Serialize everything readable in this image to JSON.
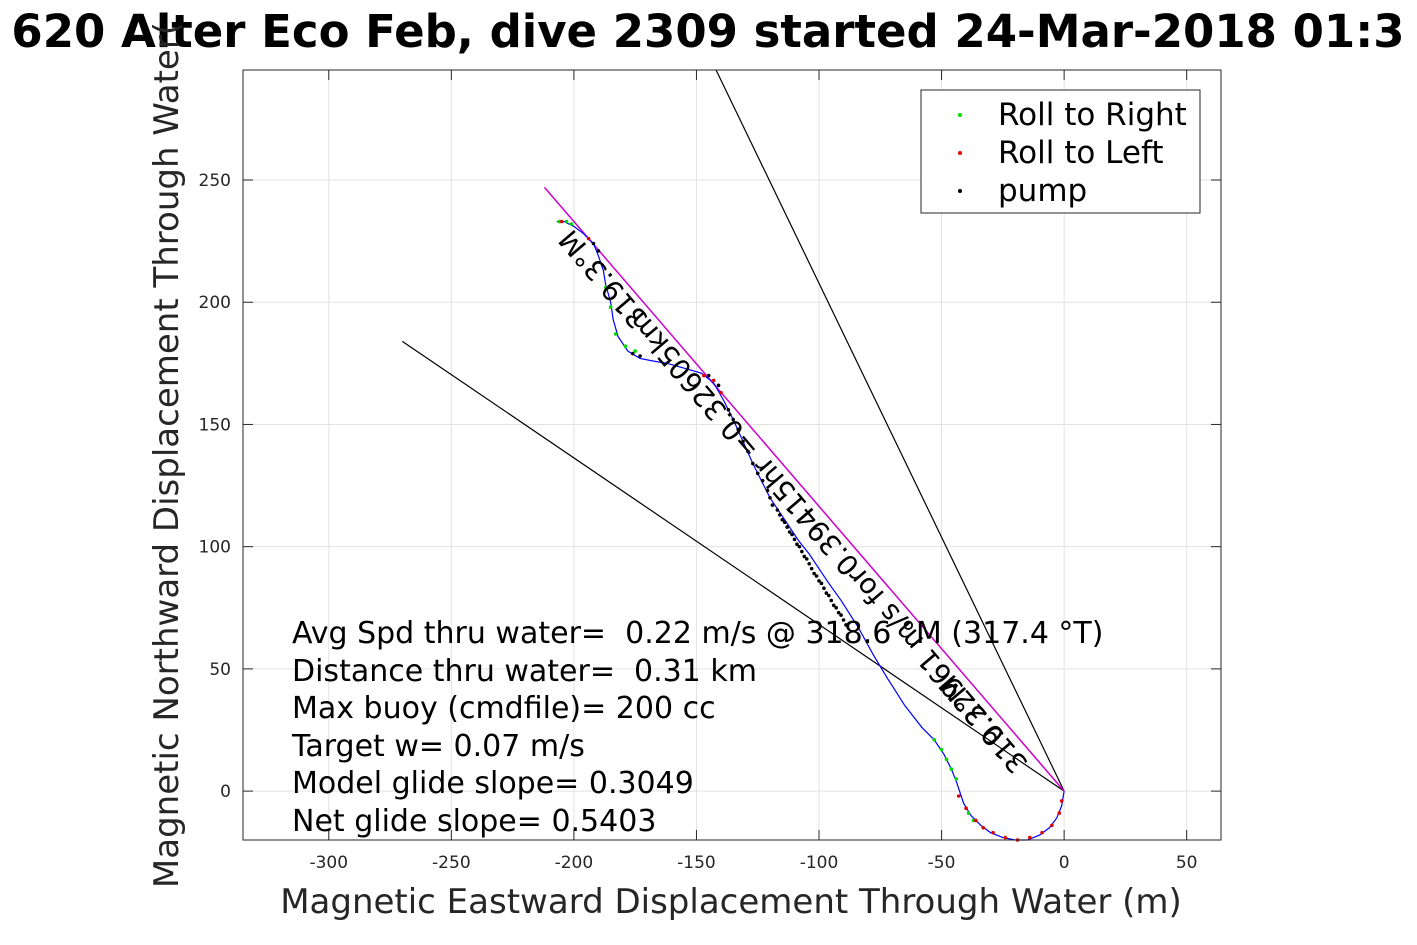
{
  "chart_data": {
    "type": "scatter",
    "title": "620 Alter Eco Feb, dive 2309 started 24-Mar-2018 01:3",
    "xlabel": "Magnetic Eastward Displacement Through Water (m)",
    "ylabel": "Magnetic Northward Displacement Through Water(",
    "xlim": [
      -335,
      64
    ],
    "ylim": [
      -20,
      295
    ],
    "xticks": [
      -300,
      -250,
      -200,
      -150,
      -100,
      -50,
      0,
      50
    ],
    "yticks": [
      0,
      50,
      100,
      150,
      200,
      250
    ],
    "grid": true,
    "legend": {
      "placement": "top-right",
      "entries": [
        {
          "label": "Roll to Right",
          "color": "#00d800"
        },
        {
          "label": "Roll to Left",
          "color": "#e00000"
        },
        {
          "label": "pump",
          "color": "#000000"
        }
      ]
    },
    "track": [
      [
        0,
        0
      ],
      [
        -1,
        -6
      ],
      [
        -3,
        -11
      ],
      [
        -6,
        -15
      ],
      [
        -10,
        -18
      ],
      [
        -15,
        -20
      ],
      [
        -20,
        -20
      ],
      [
        -25,
        -19
      ],
      [
        -30,
        -17
      ],
      [
        -34,
        -14
      ],
      [
        -38,
        -10
      ],
      [
        -41,
        -5
      ],
      [
        -44,
        4
      ],
      [
        -46,
        9
      ],
      [
        -49,
        15
      ],
      [
        -53,
        21
      ],
      [
        -58,
        26
      ],
      [
        -65,
        35
      ],
      [
        -72,
        46
      ],
      [
        -78,
        56
      ],
      [
        -84,
        67
      ],
      [
        -91,
        78
      ],
      [
        -96,
        85
      ],
      [
        -100,
        91
      ],
      [
        -104,
        97
      ],
      [
        -108,
        102
      ],
      [
        -112,
        108
      ],
      [
        -116,
        114
      ],
      [
        -120,
        120
      ],
      [
        -124,
        128
      ],
      [
        -127,
        134
      ],
      [
        -131,
        143
      ],
      [
        -135,
        152
      ],
      [
        -139,
        160
      ],
      [
        -143,
        167
      ],
      [
        -148,
        171
      ],
      [
        -155,
        173
      ],
      [
        -162,
        175
      ],
      [
        -168,
        176
      ],
      [
        -173,
        177
      ],
      [
        -178,
        180
      ],
      [
        -182,
        186
      ],
      [
        -184,
        193
      ],
      [
        -185,
        200
      ],
      [
        -187,
        207
      ],
      [
        -188,
        213
      ],
      [
        -190,
        219
      ],
      [
        -192,
        224
      ],
      [
        -196,
        228
      ],
      [
        -200,
        231
      ],
      [
        -204,
        233
      ],
      [
        -207,
        233
      ]
    ],
    "roll_right": [
      [
        -206,
        233
      ],
      [
        -203,
        233
      ],
      [
        -201,
        232
      ],
      [
        -175,
        180
      ],
      [
        -179,
        182
      ],
      [
        -183,
        187
      ],
      [
        -185,
        198
      ],
      [
        -187,
        206
      ],
      [
        -53,
        21
      ],
      [
        -50,
        17
      ],
      [
        -48,
        13
      ],
      [
        -46,
        9
      ],
      [
        -44,
        5
      ],
      [
        -39,
        -9
      ],
      [
        -37,
        -12
      ]
    ],
    "roll_left": [
      [
        -205,
        233
      ],
      [
        -194,
        226
      ],
      [
        -147,
        170
      ],
      [
        -143,
        168
      ],
      [
        -140,
        163
      ],
      [
        -1,
        -4
      ],
      [
        -2,
        -9
      ],
      [
        -5,
        -14
      ],
      [
        -9,
        -17
      ],
      [
        -14,
        -19
      ],
      [
        -19,
        -20
      ],
      [
        -24,
        -19
      ],
      [
        -29,
        -17
      ],
      [
        -33,
        -15
      ],
      [
        -36,
        -12
      ],
      [
        -40,
        -7
      ],
      [
        -43,
        -2
      ]
    ],
    "pump": [
      [
        -190,
        221
      ],
      [
        -192,
        224
      ],
      [
        -176,
        179
      ],
      [
        -173,
        178
      ],
      [
        -145,
        170
      ],
      [
        -141,
        166
      ],
      [
        -137,
        156
      ],
      [
        -135,
        152
      ],
      [
        -133,
        148
      ],
      [
        -131,
        143
      ],
      [
        -129,
        139
      ],
      [
        -127,
        134
      ],
      [
        -125,
        130
      ],
      [
        -123,
        127
      ],
      [
        -121,
        123
      ],
      [
        -120,
        120
      ],
      [
        -119,
        117
      ],
      [
        -117,
        115
      ],
      [
        -116,
        113
      ],
      [
        -115,
        111
      ],
      [
        -114,
        110
      ],
      [
        -113,
        108
      ],
      [
        -112,
        106
      ],
      [
        -111,
        105
      ],
      [
        -110,
        103
      ],
      [
        -109,
        101
      ],
      [
        -108,
        100
      ],
      [
        -107,
        98
      ],
      [
        -106,
        96
      ],
      [
        -105,
        95
      ],
      [
        -104,
        93
      ],
      [
        -103,
        91
      ],
      [
        -102,
        89
      ],
      [
        -101,
        88
      ],
      [
        -100,
        86
      ],
      [
        -99,
        85
      ],
      [
        -98,
        83
      ],
      [
        -97,
        81
      ],
      [
        -96,
        80
      ],
      [
        -95,
        78
      ],
      [
        -94,
        76
      ],
      [
        -93,
        75
      ],
      [
        -92,
        73
      ],
      [
        -91,
        72
      ],
      [
        -90,
        70
      ],
      [
        -89,
        68
      ]
    ],
    "heading_line": [
      [
        0,
        0
      ],
      [
        -212,
        247
      ]
    ],
    "current_lines": [
      [
        [
          0,
          0
        ],
        [
          -142,
          295
        ]
      ],
      [
        [
          0,
          0
        ],
        [
          -270,
          184
        ]
      ]
    ],
    "heading_line_labels": [
      {
        "text": "319.3°M",
        "at": [
          -30,
          30
        ]
      },
      {
        "text": "0.22961 m/s for0.39415hr =0.32605km",
        "at": [
          -98,
          110
        ]
      },
      {
        "text": "319.3°M",
        "at": [
          -185,
          212
        ]
      }
    ],
    "annotations": [
      "Avg Spd thru water=  0.22 m/s @ 318.6 °M (317.4 °T)",
      "Distance thru water=  0.31 km",
      "Max buoy (cmdfile)= 200 cc",
      "Target w= 0.07 m/s",
      "Model glide slope= 0.3049",
      "Net glide slope= 0.5403"
    ],
    "colors": {
      "track": "#0000ff",
      "heading_line": "#cc00cc",
      "current_line": "#000000"
    }
  }
}
